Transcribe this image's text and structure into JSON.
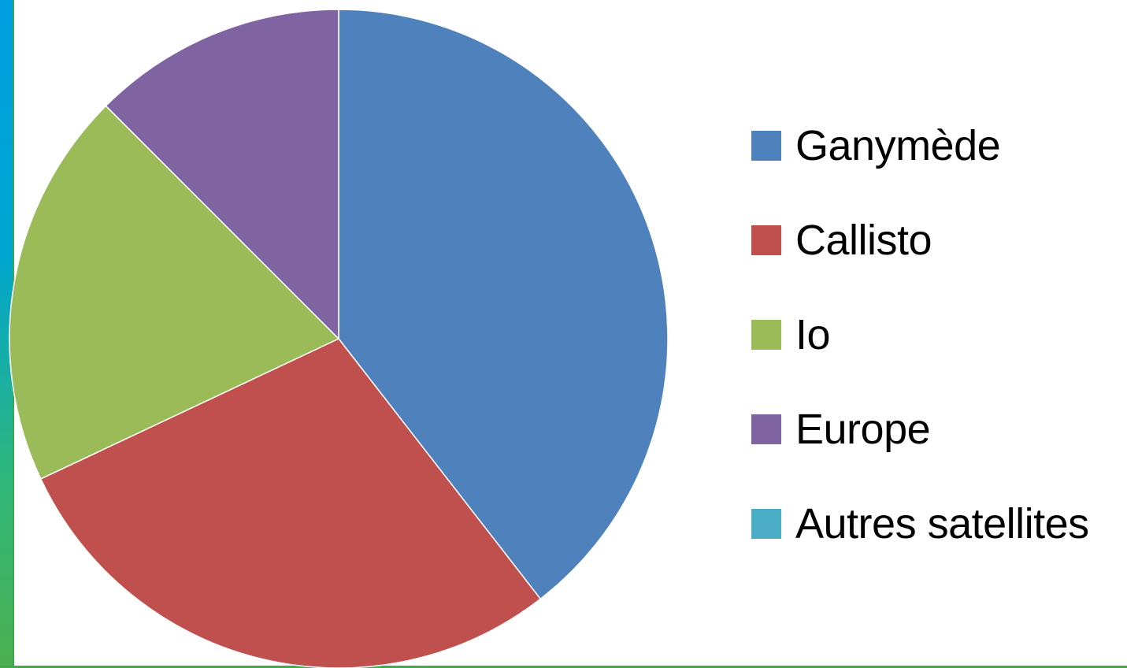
{
  "colors": {
    "background": "#ffffff",
    "slice_outline": "#ffffff"
  },
  "chart_data": {
    "type": "pie",
    "title": "",
    "categories": [
      "Ganymède",
      "Callisto",
      "Io",
      "Europe",
      "Autres satellites"
    ],
    "values": [
      39.5,
      28.5,
      19.5,
      12.5,
      0.0
    ],
    "unit": "%",
    "colors": [
      "#4f81bd",
      "#c0504d",
      "#9bbb59",
      "#8064a2",
      "#4bacc6"
    ],
    "start_angle_deg": 0,
    "direction": "clockwise",
    "legend_position": "right",
    "grid": false
  }
}
